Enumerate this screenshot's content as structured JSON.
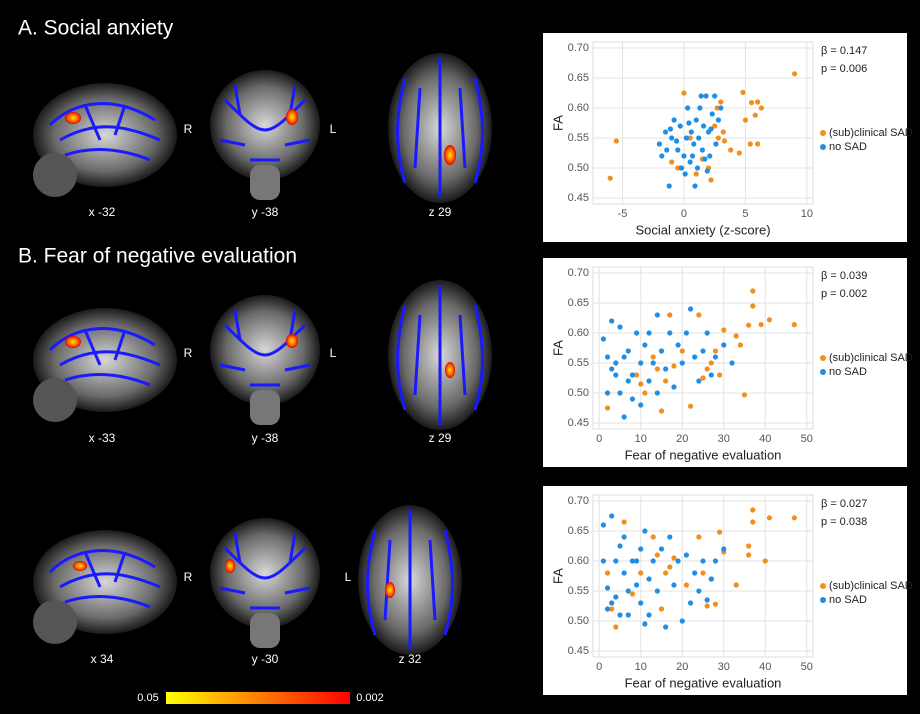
{
  "figure": {
    "panel_a": "A. Social anxiety",
    "panel_b": "B. Fear of negative evaluation",
    "slices": [
      [
        "x -32",
        "y -38",
        "z 29"
      ],
      [
        "x -33",
        "y -38",
        "z 29"
      ],
      [
        "x 34",
        "y -30",
        "z 32"
      ]
    ],
    "orientation": [
      "R",
      "L"
    ],
    "colorbar": [
      0.05,
      0.002
    ]
  },
  "chart_data": [
    {
      "type": "scatter",
      "x_label": "Social anxiety (z-score)",
      "y_label": "FA",
      "annotations": [
        "β = 0.147",
        "p = 0.006"
      ],
      "xlim": [
        -7.4,
        10.5
      ],
      "ylim": [
        0.44,
        0.71
      ],
      "xticks": [
        -5,
        0,
        5,
        10
      ],
      "yticks": [
        0.45,
        {
          "value": 0.5,
          "label": "0.50"
        },
        0.55,
        {
          "value": 0.6,
          "label": "0.60"
        },
        0.65,
        {
          "value": 0.7,
          "label": "0.70"
        }
      ],
      "grid": true,
      "legend": "right",
      "series": [
        {
          "name": "(sub)clinical SAD",
          "color": "#f28e1c",
          "x": [
            9,
            6,
            6.3,
            5.8,
            5.5,
            4.8,
            5,
            5.4,
            4.5,
            3.8,
            3.2,
            2.8,
            2.5,
            2.7,
            3,
            1.5,
            2,
            1,
            0.5,
            -0.5,
            -1,
            0,
            2.2,
            6,
            -6,
            -5.5,
            3.3
          ],
          "y": [
            0.657,
            0.61,
            0.6,
            0.588,
            0.609,
            0.626,
            0.58,
            0.54,
            0.525,
            0.53,
            0.56,
            0.55,
            0.57,
            0.6,
            0.61,
            0.515,
            0.5,
            0.49,
            0.55,
            0.5,
            0.51,
            0.625,
            0.48,
            0.54,
            0.483,
            0.545,
            0.545
          ]
        },
        {
          "name": "no SAD",
          "color": "#1f8fe6",
          "x": [
            -2,
            -1.8,
            -1.5,
            -1.2,
            -1,
            -0.8,
            -0.5,
            -0.3,
            0,
            0.2,
            0.3,
            0.5,
            0.6,
            0.8,
            1,
            1.1,
            1.2,
            1.4,
            1.5,
            1.6,
            1.8,
            2,
            2.1,
            2.3,
            2.5,
            2.6,
            2.8,
            3,
            0.1,
            -0.2,
            0.9,
            1.3,
            -1.4,
            0.4,
            1.7,
            -0.6,
            2.2,
            0.7,
            -1.1,
            1.9
          ],
          "y": [
            0.54,
            0.52,
            0.56,
            0.47,
            0.55,
            0.58,
            0.53,
            0.57,
            0.52,
            0.55,
            0.6,
            0.51,
            0.56,
            0.54,
            0.58,
            0.5,
            0.55,
            0.62,
            0.53,
            0.57,
            0.62,
            0.56,
            0.52,
            0.59,
            0.62,
            0.54,
            0.58,
            0.6,
            0.49,
            0.5,
            0.47,
            0.6,
            0.53,
            0.575,
            0.515,
            0.545,
            0.565,
            0.52,
            0.565,
            0.495
          ]
        }
      ]
    },
    {
      "type": "scatter",
      "x_label": "Fear of negative evaluation",
      "y_label": "FA",
      "annotations": [
        "β = 0.039",
        "p = 0.002"
      ],
      "xlim": [
        -1.5,
        51.5
      ],
      "ylim": [
        0.44,
        0.71
      ],
      "xticks": [
        0,
        10,
        20,
        30,
        40,
        50
      ],
      "yticks": [
        0.45,
        {
          "value": 0.5,
          "label": "0.50"
        },
        0.55,
        {
          "value": 0.6,
          "label": "0.60"
        },
        0.65,
        {
          "value": 0.7,
          "label": "0.70"
        }
      ],
      "grid": true,
      "legend": "right",
      "series": [
        {
          "name": "(sub)clinical SAD",
          "color": "#f28e1c",
          "x": [
            47,
            41,
            39,
            37,
            37,
            36,
            35,
            34,
            30,
            33,
            28,
            27,
            26,
            25,
            24,
            22,
            20,
            18,
            17,
            16,
            15,
            14,
            13,
            11,
            10,
            9,
            2,
            29
          ],
          "y": [
            0.614,
            0.622,
            0.614,
            0.67,
            0.645,
            0.613,
            0.497,
            0.58,
            0.605,
            0.595,
            0.57,
            0.55,
            0.54,
            0.525,
            0.63,
            0.478,
            0.57,
            0.545,
            0.63,
            0.52,
            0.47,
            0.54,
            0.56,
            0.5,
            0.515,
            0.53,
            0.475,
            0.53
          ]
        },
        {
          "name": "no SAD",
          "color": "#1f8fe6",
          "x": [
            1,
            2,
            3,
            3,
            4,
            4,
            5,
            5,
            6,
            6,
            7,
            7,
            8,
            9,
            10,
            10,
            11,
            12,
            12,
            13,
            14,
            14,
            15,
            16,
            17,
            18,
            19,
            20,
            21,
            22,
            23,
            24,
            25,
            26,
            27,
            28,
            30,
            32,
            2,
            8
          ],
          "y": [
            0.59,
            0.56,
            0.54,
            0.62,
            0.53,
            0.55,
            0.5,
            0.61,
            0.46,
            0.56,
            0.52,
            0.57,
            0.53,
            0.6,
            0.55,
            0.48,
            0.58,
            0.52,
            0.6,
            0.55,
            0.5,
            0.63,
            0.57,
            0.54,
            0.6,
            0.51,
            0.58,
            0.55,
            0.6,
            0.64,
            0.56,
            0.52,
            0.57,
            0.6,
            0.53,
            0.56,
            0.58,
            0.55,
            0.5,
            0.49
          ]
        }
      ]
    },
    {
      "type": "scatter",
      "x_label": "Fear of negative evaluation",
      "y_label": "FA",
      "annotations": [
        "β = 0.027",
        "p = 0.038"
      ],
      "xlim": [
        -1.5,
        51.5
      ],
      "ylim": [
        0.44,
        0.71
      ],
      "xticks": [
        0,
        10,
        20,
        30,
        40,
        50
      ],
      "yticks": [
        0.45,
        {
          "value": 0.5,
          "label": "0.50"
        },
        0.55,
        {
          "value": 0.6,
          "label": "0.60"
        },
        0.65,
        {
          "value": 0.7,
          "label": "0.70"
        }
      ],
      "grid": true,
      "legend": "right",
      "series": [
        {
          "name": "(sub)clinical SAD",
          "color": "#f28e1c",
          "x": [
            47,
            41,
            40,
            37,
            37,
            36,
            36,
            33,
            30,
            29,
            28,
            27,
            26,
            25,
            24,
            21,
            18,
            17,
            16,
            15,
            14,
            13,
            10,
            8,
            6,
            4,
            3,
            2
          ],
          "y": [
            0.672,
            0.672,
            0.6,
            0.685,
            0.665,
            0.625,
            0.61,
            0.56,
            0.615,
            0.648,
            0.528,
            0.57,
            0.525,
            0.58,
            0.64,
            0.56,
            0.605,
            0.59,
            0.58,
            0.52,
            0.61,
            0.64,
            0.58,
            0.545,
            0.665,
            0.49,
            0.52,
            0.58
          ]
        },
        {
          "name": "no SAD",
          "color": "#1f8fe6",
          "x": [
            1,
            2,
            2,
            3,
            3,
            4,
            4,
            5,
            5,
            6,
            7,
            7,
            8,
            9,
            10,
            10,
            11,
            12,
            12,
            13,
            14,
            15,
            16,
            17,
            18,
            19,
            20,
            21,
            22,
            23,
            24,
            25,
            26,
            27,
            28,
            30,
            11,
            6,
            9,
            1
          ],
          "y": [
            0.6,
            0.52,
            0.555,
            0.675,
            0.53,
            0.54,
            0.6,
            0.51,
            0.625,
            0.58,
            0.55,
            0.51,
            0.6,
            0.56,
            0.62,
            0.53,
            0.65,
            0.57,
            0.51,
            0.6,
            0.55,
            0.62,
            0.49,
            0.64,
            0.56,
            0.6,
            0.5,
            0.61,
            0.53,
            0.58,
            0.55,
            0.6,
            0.535,
            0.57,
            0.6,
            0.62,
            0.495,
            0.64,
            0.6,
            0.66
          ]
        }
      ]
    }
  ]
}
